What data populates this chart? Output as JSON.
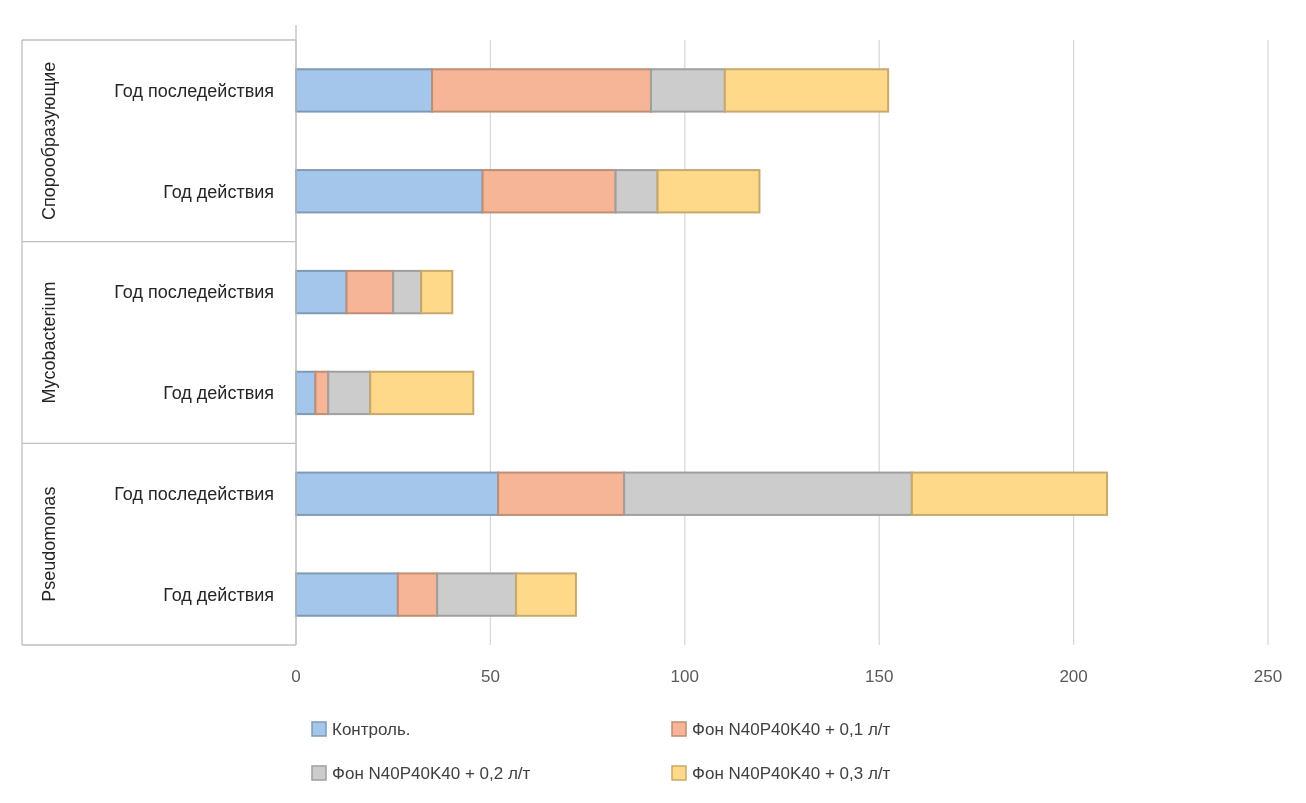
{
  "chart_data": {
    "type": "bar",
    "orientation": "horizontal",
    "stacked": true,
    "categories": [
      "Год последействия",
      "Год действия",
      "Год последействия",
      "Год действия",
      "Год последействия",
      "Год действия"
    ],
    "annotations": [
      "Спорообразующие",
      "Mycobacterium",
      "Pseudomonas"
    ],
    "series": [
      {
        "name": "Контроль.",
        "color": "#a4c6ea",
        "values": [
          35,
          48,
          13,
          5,
          52,
          26.2
        ]
      },
      {
        "name": "Фон N40P40K40 + 0,1 л/т",
        "color": "#f6b596",
        "values": [
          56.3,
          34.2,
          12,
          3.3,
          32.4,
          10.1
        ]
      },
      {
        "name": "Фон N40P40K40 + 0,2 л/т",
        "color": "#cccccc",
        "values": [
          19,
          10.8,
          7.2,
          10.8,
          74,
          20.3
        ]
      },
      {
        "name": "Фон N40P40K40 + 0,3 л/т",
        "color": "#ffd98a",
        "values": [
          42,
          26.2,
          8,
          26.5,
          50.2,
          15.4
        ]
      }
    ],
    "xlim": [
      0,
      250
    ],
    "xticks": [
      0,
      50,
      100,
      150,
      200,
      250
    ],
    "grid": "x",
    "legend": "bottom"
  }
}
